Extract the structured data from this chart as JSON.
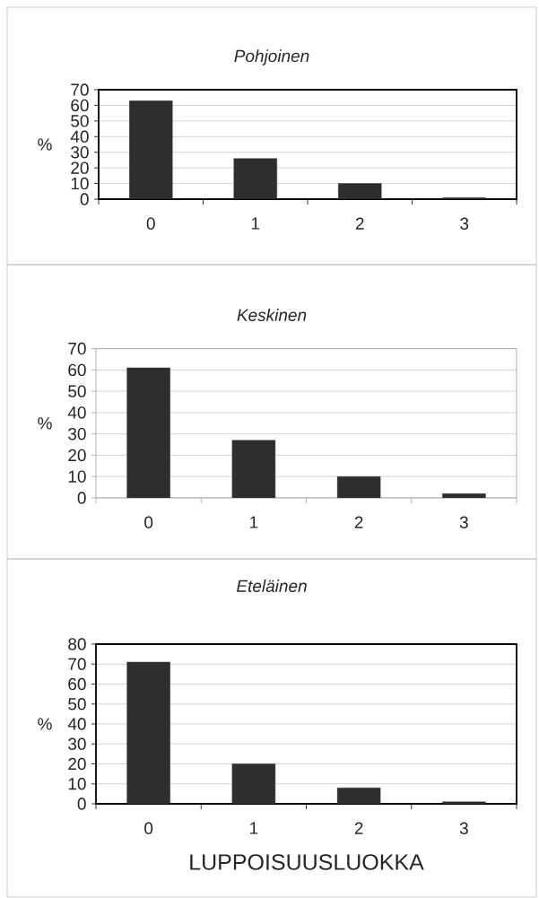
{
  "chart_data": [
    {
      "type": "bar",
      "title": "Pohjoinen",
      "ylabel": "%",
      "categories": [
        "0",
        "1",
        "2",
        "3"
      ],
      "values": [
        63,
        26,
        10,
        1
      ],
      "color": "#2e2e2e",
      "ylim": [
        0,
        70
      ],
      "yticks": [
        0,
        10,
        20,
        30,
        40,
        50,
        60,
        70
      ],
      "grid": "y"
    },
    {
      "type": "bar",
      "title": "Keskinen",
      "ylabel": "%",
      "categories": [
        "0",
        "1",
        "2",
        "3"
      ],
      "values": [
        61,
        27,
        10,
        2
      ],
      "color": "#2e2e2e",
      "ylim": [
        0,
        70
      ],
      "yticks": [
        0,
        10,
        20,
        30,
        40,
        50,
        60,
        70
      ],
      "grid": "y"
    },
    {
      "type": "bar",
      "title": "Eteläinen",
      "xlabel": "LUPPOISUUSLUOKKA",
      "ylabel": "%",
      "categories": [
        "0",
        "1",
        "2",
        "3"
      ],
      "values": [
        71,
        20,
        8,
        1
      ],
      "color": "#2e2e2e",
      "ylim": [
        0,
        80
      ],
      "yticks": [
        0,
        10,
        20,
        30,
        40,
        50,
        60,
        70,
        80
      ],
      "grid": "y"
    }
  ]
}
